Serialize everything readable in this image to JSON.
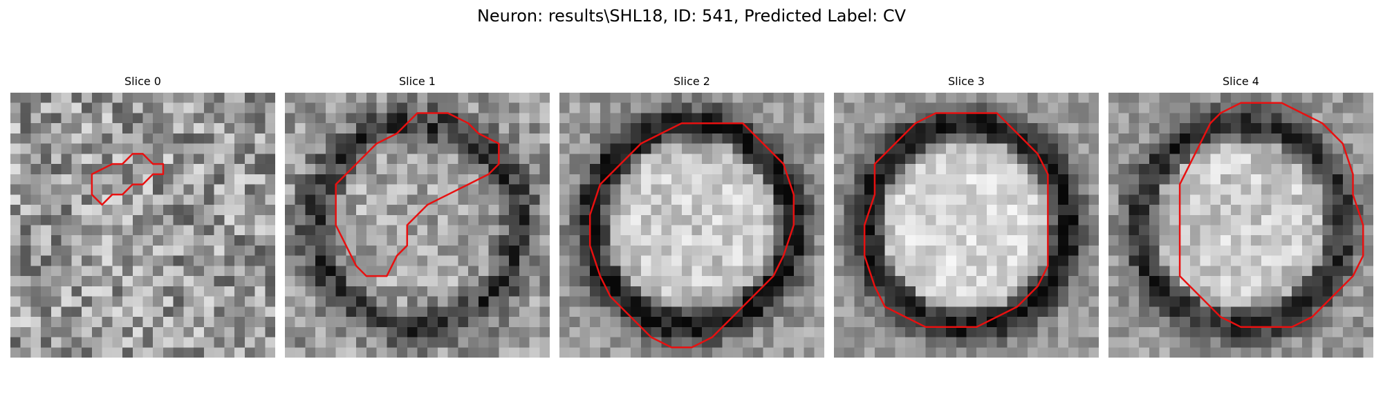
{
  "figure": {
    "title": "Neuron: results\\SHL18, ID: 541, Predicted Label: CV",
    "contour_color": "#e81010"
  },
  "panels": [
    {
      "title": "Slice 0",
      "ring_strength": 0.0,
      "center_brightness": 0.0,
      "noise": 0.55,
      "seed": 11,
      "contour": [
        [
          10,
          7
        ],
        [
          8,
          8
        ],
        [
          8,
          10
        ],
        [
          9,
          11
        ],
        [
          10,
          10
        ],
        [
          11,
          10
        ],
        [
          12,
          9
        ],
        [
          13,
          9
        ],
        [
          14,
          8
        ],
        [
          15,
          8
        ],
        [
          15,
          7
        ],
        [
          14,
          7
        ],
        [
          13,
          6
        ],
        [
          12,
          6
        ],
        [
          11,
          7
        ]
      ]
    },
    {
      "title": "Slice 1",
      "ring_strength": 0.75,
      "center_brightness": 0.15,
      "noise": 0.4,
      "seed": 23,
      "contour": [
        [
          11,
          4
        ],
        [
          9,
          5
        ],
        [
          7,
          7
        ],
        [
          5,
          9
        ],
        [
          5,
          13
        ],
        [
          6,
          15
        ],
        [
          7,
          17
        ],
        [
          8,
          18
        ],
        [
          10,
          18
        ],
        [
          11,
          16
        ],
        [
          12,
          15
        ],
        [
          12,
          13
        ],
        [
          14,
          11
        ],
        [
          16,
          10
        ],
        [
          18,
          9
        ],
        [
          20,
          8
        ],
        [
          21,
          7
        ],
        [
          21,
          5
        ],
        [
          19,
          4
        ],
        [
          18,
          3
        ],
        [
          16,
          2
        ],
        [
          13,
          2
        ]
      ]
    },
    {
      "title": "Slice 2",
      "ring_strength": 1.0,
      "center_brightness": 0.55,
      "noise": 0.3,
      "seed": 37,
      "contour": [
        [
          12,
          3
        ],
        [
          10,
          4
        ],
        [
          8,
          5
        ],
        [
          6,
          7
        ],
        [
          4,
          9
        ],
        [
          3,
          12
        ],
        [
          3,
          15
        ],
        [
          4,
          18
        ],
        [
          5,
          20
        ],
        [
          7,
          22
        ],
        [
          9,
          24
        ],
        [
          11,
          25
        ],
        [
          13,
          25
        ],
        [
          15,
          24
        ],
        [
          17,
          22
        ],
        [
          19,
          20
        ],
        [
          21,
          18
        ],
        [
          22,
          16
        ],
        [
          23,
          13
        ],
        [
          23,
          10
        ],
        [
          22,
          7
        ],
        [
          20,
          5
        ],
        [
          18,
          3
        ],
        [
          16,
          3
        ]
      ]
    },
    {
      "title": "Slice 3",
      "ring_strength": 1.0,
      "center_brightness": 0.7,
      "noise": 0.25,
      "seed": 41,
      "contour": [
        [
          10,
          2
        ],
        [
          8,
          3
        ],
        [
          6,
          5
        ],
        [
          4,
          7
        ],
        [
          4,
          10
        ],
        [
          3,
          13
        ],
        [
          3,
          16
        ],
        [
          4,
          19
        ],
        [
          5,
          21
        ],
        [
          7,
          22
        ],
        [
          9,
          23
        ],
        [
          12,
          23
        ],
        [
          14,
          23
        ],
        [
          16,
          22
        ],
        [
          18,
          21
        ],
        [
          20,
          19
        ],
        [
          21,
          17
        ],
        [
          21,
          14
        ],
        [
          21,
          11
        ],
        [
          21,
          8
        ],
        [
          20,
          6
        ],
        [
          18,
          4
        ],
        [
          16,
          2
        ],
        [
          13,
          2
        ]
      ]
    },
    {
      "title": "Slice 4",
      "ring_strength": 0.85,
      "center_brightness": 0.55,
      "noise": 0.3,
      "seed": 53,
      "contour": [
        [
          13,
          1
        ],
        [
          11,
          2
        ],
        [
          10,
          3
        ],
        [
          9,
          5
        ],
        [
          8,
          7
        ],
        [
          7,
          9
        ],
        [
          7,
          12
        ],
        [
          7,
          15
        ],
        [
          7,
          18
        ],
        [
          9,
          20
        ],
        [
          11,
          22
        ],
        [
          13,
          23
        ],
        [
          16,
          23
        ],
        [
          18,
          23
        ],
        [
          20,
          22
        ],
        [
          22,
          20
        ],
        [
          24,
          18
        ],
        [
          25,
          16
        ],
        [
          25,
          13
        ],
        [
          24,
          10
        ],
        [
          24,
          8
        ],
        [
          23,
          5
        ],
        [
          21,
          3
        ],
        [
          19,
          2
        ],
        [
          17,
          1
        ],
        [
          15,
          1
        ]
      ]
    }
  ]
}
